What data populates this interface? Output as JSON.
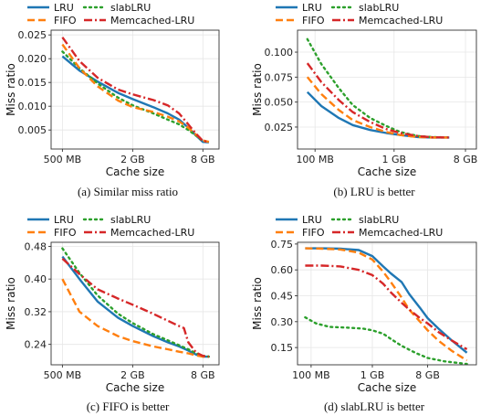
{
  "chart_data": [
    {
      "type": "line",
      "caption": "(a) Similar miss ratio",
      "xlabel": "Cache size",
      "ylabel": "Miss ratio",
      "xscale": "log",
      "xlim": [
        0.4,
        11
      ],
      "ylim": [
        0.001,
        0.026
      ],
      "xticks": [
        {
          "v": 0.5,
          "label": "500 MB"
        },
        {
          "v": 2,
          "label": "2 GB"
        },
        {
          "v": 8,
          "label": "8 GB"
        }
      ],
      "yticks": [
        {
          "v": 0.005,
          "label": "0.005"
        },
        {
          "v": 0.01,
          "label": "0.010"
        },
        {
          "v": 0.015,
          "label": "0.015"
        },
        {
          "v": 0.02,
          "label": "0.020"
        },
        {
          "v": 0.025,
          "label": "0.025"
        }
      ],
      "grid": true,
      "legend": "top, outside",
      "series": [
        {
          "name": "LRU",
          "color": "#1f77b4",
          "style": "solid",
          "x": [
            0.5,
            0.7,
            1,
            1.5,
            2,
            3,
            4,
            5,
            6,
            7,
            8,
            9
          ],
          "y": [
            0.0205,
            0.0175,
            0.0152,
            0.0128,
            0.0115,
            0.0098,
            0.0085,
            0.0072,
            0.0055,
            0.0038,
            0.0025,
            0.0024
          ]
        },
        {
          "name": "slabLRU",
          "color": "#2ca02c",
          "style": "dotted",
          "x": [
            0.5,
            0.7,
            1,
            1.5,
            2,
            3,
            4,
            5,
            6,
            7,
            8,
            9
          ],
          "y": [
            0.0215,
            0.018,
            0.0148,
            0.0118,
            0.0102,
            0.0085,
            0.0072,
            0.0062,
            0.005,
            0.0038,
            0.0027,
            0.0025
          ]
        },
        {
          "name": "FIFO",
          "color": "#ff7f0e",
          "style": "dashed",
          "x": [
            0.5,
            0.7,
            1,
            1.5,
            2,
            3,
            4,
            5,
            6,
            7,
            8,
            9
          ],
          "y": [
            0.023,
            0.018,
            0.0142,
            0.0112,
            0.0098,
            0.0088,
            0.0078,
            0.0068,
            0.0055,
            0.004,
            0.0028,
            0.0025
          ]
        },
        {
          "name": "Memcached-LRU",
          "color": "#d62728",
          "style": "dashdot",
          "x": [
            0.5,
            0.7,
            1,
            1.5,
            2,
            3,
            4,
            5,
            6,
            7,
            8,
            9
          ],
          "y": [
            0.0245,
            0.0195,
            0.016,
            0.0135,
            0.0125,
            0.0113,
            0.0102,
            0.0085,
            0.0062,
            0.0042,
            0.0027,
            0.0025
          ]
        }
      ]
    },
    {
      "type": "line",
      "caption": "(b) LRU is better",
      "xlabel": "Cache size",
      "ylabel": "Miss ratio",
      "xscale": "log",
      "xlim": [
        0.06,
        11
      ],
      "ylim": [
        0.003,
        0.122
      ],
      "xticks": [
        {
          "v": 0.1,
          "label": "100 MB"
        },
        {
          "v": 1,
          "label": "1 GB"
        },
        {
          "v": 8,
          "label": "8 GB"
        }
      ],
      "yticks": [
        {
          "v": 0.025,
          "label": "0.025"
        },
        {
          "v": 0.05,
          "label": "0.050"
        },
        {
          "v": 0.075,
          "label": "0.075"
        },
        {
          "v": 0.1,
          "label": "0.100"
        }
      ],
      "grid": true,
      "legend": "top, outside",
      "series": [
        {
          "name": "LRU",
          "color": "#1f77b4",
          "style": "solid",
          "x": [
            0.08,
            0.12,
            0.2,
            0.3,
            0.5,
            0.8,
            1.2,
            2,
            3,
            5
          ],
          "y": [
            0.06,
            0.046,
            0.034,
            0.027,
            0.022,
            0.019,
            0.017,
            0.015,
            0.0145,
            0.0145
          ]
        },
        {
          "name": "slabLRU",
          "color": "#2ca02c",
          "style": "dotted",
          "x": [
            0.08,
            0.12,
            0.2,
            0.3,
            0.5,
            0.8,
            1.2,
            2,
            3,
            5
          ],
          "y": [
            0.113,
            0.088,
            0.064,
            0.047,
            0.034,
            0.026,
            0.02,
            0.016,
            0.015,
            0.0145
          ]
        },
        {
          "name": "FIFO",
          "color": "#ff7f0e",
          "style": "dashed",
          "x": [
            0.08,
            0.12,
            0.2,
            0.3,
            0.5,
            0.8,
            1.2,
            2,
            3,
            5
          ],
          "y": [
            0.075,
            0.058,
            0.042,
            0.032,
            0.025,
            0.02,
            0.017,
            0.015,
            0.0145,
            0.0145
          ]
        },
        {
          "name": "Memcached-LRU",
          "color": "#d62728",
          "style": "dashdot",
          "x": [
            0.08,
            0.12,
            0.2,
            0.3,
            0.5,
            0.8,
            1.2,
            2,
            3,
            5
          ],
          "y": [
            0.089,
            0.07,
            0.052,
            0.04,
            0.03,
            0.023,
            0.019,
            0.016,
            0.0148,
            0.0145
          ]
        }
      ]
    },
    {
      "type": "line",
      "caption": "(c) FIFO is better",
      "xlabel": "Cache size",
      "ylabel": "Miss ratio",
      "xscale": "log",
      "xlim": [
        0.4,
        11
      ],
      "ylim": [
        0.19,
        0.49
      ],
      "xticks": [
        {
          "v": 0.5,
          "label": "500 MB"
        },
        {
          "v": 2,
          "label": "2 GB"
        },
        {
          "v": 8,
          "label": "8 GB"
        }
      ],
      "yticks": [
        {
          "v": 0.24,
          "label": "0.24"
        },
        {
          "v": 0.32,
          "label": "0.32"
        },
        {
          "v": 0.4,
          "label": "0.40"
        },
        {
          "v": 0.48,
          "label": "0.48"
        }
      ],
      "grid": true,
      "legend": "top, outside",
      "series": [
        {
          "name": "LRU",
          "color": "#1f77b4",
          "style": "solid",
          "x": [
            0.5,
            0.7,
            1,
            1.5,
            2,
            3,
            4,
            5,
            6,
            7,
            8,
            9
          ],
          "y": [
            0.455,
            0.4,
            0.345,
            0.305,
            0.285,
            0.26,
            0.245,
            0.235,
            0.225,
            0.215,
            0.21,
            0.21
          ]
        },
        {
          "name": "slabLRU",
          "color": "#2ca02c",
          "style": "dotted",
          "x": [
            0.5,
            0.7,
            1,
            1.5,
            2,
            3,
            4,
            5,
            6,
            7,
            8,
            9
          ],
          "y": [
            0.475,
            0.415,
            0.36,
            0.315,
            0.292,
            0.265,
            0.25,
            0.238,
            0.228,
            0.218,
            0.212,
            0.21
          ]
        },
        {
          "name": "FIFO",
          "color": "#ff7f0e",
          "style": "dashed",
          "x": [
            0.5,
            0.7,
            1,
            1.5,
            2,
            3,
            4,
            5,
            6,
            7,
            8,
            9
          ],
          "y": [
            0.4,
            0.32,
            0.285,
            0.26,
            0.248,
            0.235,
            0.228,
            0.222,
            0.218,
            0.213,
            0.21,
            0.21
          ]
        },
        {
          "name": "Memcached-LRU",
          "color": "#d62728",
          "style": "dashdot",
          "x": [
            0.5,
            0.7,
            1,
            1.5,
            2,
            3,
            4,
            5,
            5.5,
            6,
            7,
            8,
            9
          ],
          "y": [
            0.45,
            0.412,
            0.375,
            0.352,
            0.337,
            0.315,
            0.298,
            0.285,
            0.28,
            0.245,
            0.22,
            0.212,
            0.21
          ]
        }
      ]
    },
    {
      "type": "line",
      "caption": "(d) slabLRU is better",
      "xlabel": "Cache size",
      "ylabel": "Miss ratio",
      "xscale": "log",
      "xlim": [
        0.06,
        50
      ],
      "ylim": [
        0.05,
        0.76
      ],
      "xticks": [
        {
          "v": 0.1,
          "label": "100 MB"
        },
        {
          "v": 1,
          "label": "1 GB"
        },
        {
          "v": 8,
          "label": "8 GB"
        }
      ],
      "yticks": [
        {
          "v": 0.15,
          "label": "0.15"
        },
        {
          "v": 0.3,
          "label": "0.30"
        },
        {
          "v": 0.45,
          "label": "0.45"
        },
        {
          "v": 0.6,
          "label": "0.60"
        },
        {
          "v": 0.75,
          "label": "0.75"
        }
      ],
      "grid": true,
      "legend": "top, outside",
      "series": [
        {
          "name": "LRU",
          "color": "#1f77b4",
          "style": "solid",
          "x": [
            0.08,
            0.15,
            0.3,
            0.6,
            1,
            1.5,
            2,
            3,
            4,
            6,
            8,
            12,
            20,
            35
          ],
          "y": [
            0.725,
            0.725,
            0.723,
            0.715,
            0.68,
            0.62,
            0.58,
            0.53,
            0.46,
            0.38,
            0.32,
            0.26,
            0.19,
            0.12
          ]
        },
        {
          "name": "slabLRU",
          "color": "#2ca02c",
          "style": "dotted",
          "x": [
            0.08,
            0.12,
            0.2,
            0.4,
            0.7,
            1,
            1.5,
            2,
            3,
            5,
            8,
            15,
            35
          ],
          "y": [
            0.325,
            0.29,
            0.27,
            0.265,
            0.26,
            0.25,
            0.23,
            0.2,
            0.16,
            0.12,
            0.09,
            0.07,
            0.055
          ]
        },
        {
          "name": "FIFO",
          "color": "#ff7f0e",
          "style": "dashed",
          "x": [
            0.08,
            0.15,
            0.3,
            0.6,
            1,
            1.5,
            2,
            3,
            4,
            6,
            8,
            12,
            20,
            35
          ],
          "y": [
            0.725,
            0.723,
            0.718,
            0.7,
            0.66,
            0.59,
            0.53,
            0.44,
            0.37,
            0.3,
            0.25,
            0.19,
            0.13,
            0.075
          ]
        },
        {
          "name": "Memcached-LRU",
          "color": "#d62728",
          "style": "dashdot",
          "x": [
            0.08,
            0.15,
            0.3,
            0.6,
            1,
            1.5,
            2,
            3,
            4,
            6,
            8,
            12,
            20,
            35
          ],
          "y": [
            0.625,
            0.625,
            0.62,
            0.6,
            0.57,
            0.52,
            0.47,
            0.41,
            0.37,
            0.32,
            0.29,
            0.24,
            0.19,
            0.14
          ]
        }
      ]
    }
  ]
}
